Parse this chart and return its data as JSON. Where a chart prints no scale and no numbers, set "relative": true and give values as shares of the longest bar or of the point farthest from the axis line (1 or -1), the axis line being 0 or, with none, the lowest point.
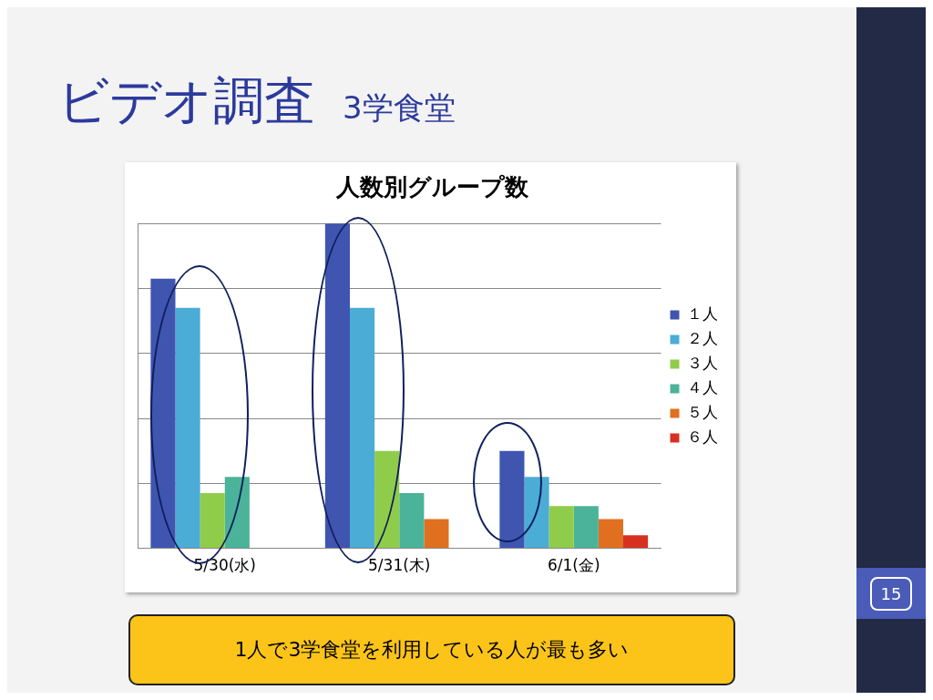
{
  "chart_data": {
    "type": "bar",
    "title": "人数別グループ数",
    "relative": true,
    "grid": "y",
    "legend": "right",
    "categories": [
      "5/30(水)",
      "5/31(木)",
      "6/1(金)"
    ],
    "series": [
      {
        "name": "１人",
        "color": "#3f55b0",
        "values": [
          0.83,
          1,
          0.3
        ]
      },
      {
        "name": "２人",
        "color": "#4bacd6",
        "values": [
          0.74,
          0.74,
          0.22
        ]
      },
      {
        "name": "３人",
        "color": "#8fcc4a",
        "values": [
          0.17,
          0.3,
          0.13
        ]
      },
      {
        "name": "４人",
        "color": "#4bb39a",
        "values": [
          0.22,
          0.17,
          0.13
        ]
      },
      {
        "name": "５人",
        "color": "#e07020",
        "values": [
          null,
          0.09,
          0.09
        ]
      },
      {
        "name": "６人",
        "color": "#d83020",
        "values": [
          null,
          null,
          0.04
        ]
      }
    ],
    "annotations": [
      "ビデオ調査",
      "3学食堂",
      "1人で3学食堂を利用している人が最も多い",
      "15"
    ]
  }
}
